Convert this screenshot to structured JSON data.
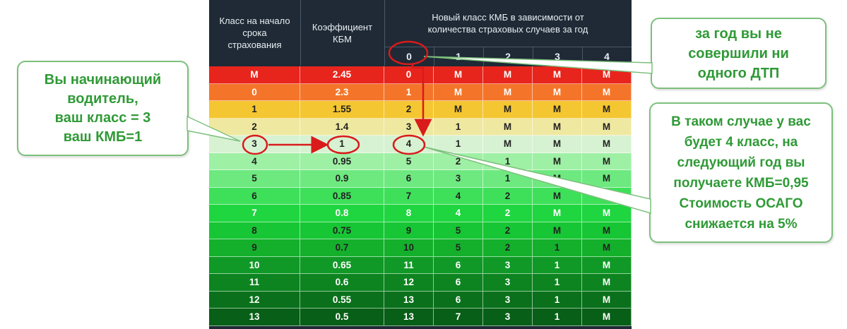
{
  "table": {
    "headers": {
      "class_start": "Класс на начало срока страхования",
      "coefficient": "Коэффициент КБМ",
      "new_class": "Новый класс КМБ в зависимости от количества страховых случаев за год",
      "claims": [
        "0",
        "1",
        "2",
        "3",
        "4"
      ]
    },
    "rows": [
      {
        "cls": "М",
        "kbm": "2.45",
        "c": [
          "0",
          "М",
          "М",
          "М",
          "М"
        ],
        "color": "#e8251c",
        "text": "#ffffff"
      },
      {
        "cls": "0",
        "kbm": "2.3",
        "c": [
          "1",
          "М",
          "М",
          "М",
          "М"
        ],
        "color": "#f4752a",
        "text": "#ffffff"
      },
      {
        "cls": "1",
        "kbm": "1.55",
        "c": [
          "2",
          "М",
          "М",
          "М",
          "М"
        ],
        "color": "#f4c631",
        "text": "#222222"
      },
      {
        "cls": "2",
        "kbm": "1.4",
        "c": [
          "3",
          "1",
          "М",
          "М",
          "М"
        ],
        "color": "#efe8a0",
        "text": "#222222"
      },
      {
        "cls": "3",
        "kbm": "1",
        "c": [
          "4",
          "1",
          "М",
          "М",
          "М"
        ],
        "color": "#d7f2d2",
        "text": "#222222"
      },
      {
        "cls": "4",
        "kbm": "0.95",
        "c": [
          "5",
          "2",
          "1",
          "М",
          "М"
        ],
        "color": "#9ef0a4",
        "text": "#222222"
      },
      {
        "cls": "5",
        "kbm": "0.9",
        "c": [
          "6",
          "3",
          "1",
          "М",
          "М"
        ],
        "color": "#6ee980",
        "text": "#222222"
      },
      {
        "cls": "6",
        "kbm": "0.85",
        "c": [
          "7",
          "4",
          "2",
          "М",
          "М"
        ],
        "color": "#3ee05a",
        "text": "#222222"
      },
      {
        "cls": "7",
        "kbm": "0.8",
        "c": [
          "8",
          "4",
          "2",
          "М",
          "М"
        ],
        "color": "#1fd640",
        "text": "#ffffff"
      },
      {
        "cls": "8",
        "kbm": "0.75",
        "c": [
          "9",
          "5",
          "2",
          "М",
          "М"
        ],
        "color": "#17c634",
        "text": "#222222"
      },
      {
        "cls": "9",
        "kbm": "0.7",
        "c": [
          "10",
          "5",
          "2",
          "1",
          "М"
        ],
        "color": "#14b02c",
        "text": "#222222"
      },
      {
        "cls": "10",
        "kbm": "0.65",
        "c": [
          "11",
          "6",
          "3",
          "1",
          "М"
        ],
        "color": "#109926",
        "text": "#ffffff"
      },
      {
        "cls": "11",
        "kbm": "0.6",
        "c": [
          "12",
          "6",
          "3",
          "1",
          "М"
        ],
        "color": "#0d8420",
        "text": "#ffffff"
      },
      {
        "cls": "12",
        "kbm": "0.55",
        "c": [
          "13",
          "6",
          "3",
          "1",
          "М"
        ],
        "color": "#0a701b",
        "text": "#ffffff"
      },
      {
        "cls": "13",
        "kbm": "0.5",
        "c": [
          "13",
          "7",
          "3",
          "1",
          "М"
        ],
        "color": "#085f17",
        "text": "#ffffff"
      }
    ]
  },
  "callouts": {
    "beginner": [
      "Вы начинающий",
      "водитель,",
      "ваш класс = 3",
      "ваш КМБ=1"
    ],
    "no_accidents": [
      "за год вы не",
      "совершили ни",
      "одного ДТП"
    ],
    "result": [
      "В таком случае у вас",
      "будет  4 класс,  на",
      "следующий год вы",
      "получаете КМБ=0,95",
      "Стоимость ОСАГО",
      "снижается на 5%"
    ]
  },
  "colors": {
    "header_bg": "#1f2a36",
    "callout_text": "#2f9a36",
    "callout_border": "#7cc07c",
    "marker": "#d91b1b"
  }
}
